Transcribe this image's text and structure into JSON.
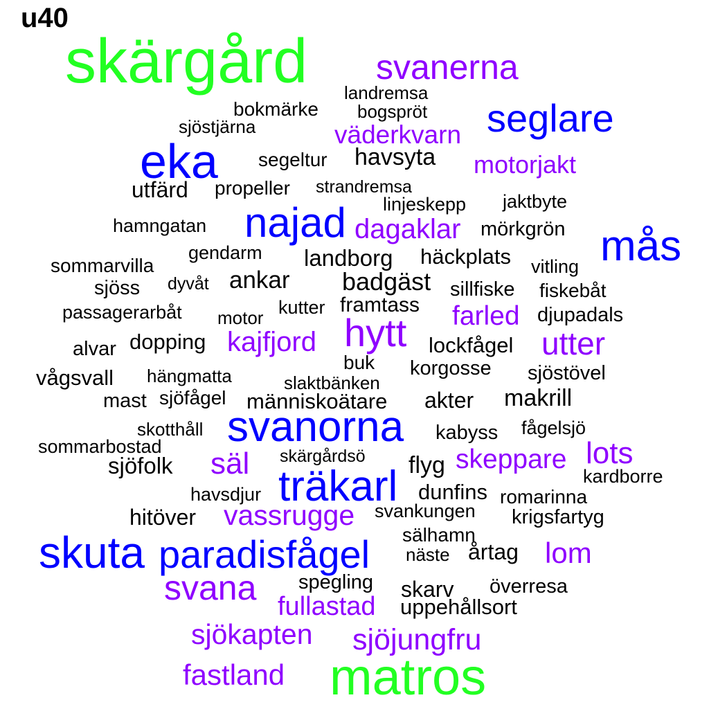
{
  "title": "u40",
  "words": [
    "skärgård",
    "svanerna",
    "landremsa",
    "bokmärke",
    "bogspröt",
    "seglare",
    "sjöstjärna",
    "väderkvarn",
    "eka",
    "segeltur",
    "havsyta",
    "motorjakt",
    "utfärd",
    "propeller",
    "strandremsa",
    "linjeskepp",
    "jaktbyte",
    "hamngatan",
    "najad",
    "dagaklar",
    "mörkgrön",
    "mås",
    "gendarm",
    "landborg",
    "häckplats",
    "sommarvilla",
    "vitling",
    "ankar",
    "sjöss",
    "dyvåt",
    "badgäst",
    "sillfiske",
    "fiskebåt",
    "kutter",
    "framtass",
    "passagerarbåt",
    "motor",
    "farled",
    "djupadals",
    "hytt",
    "kajfjord",
    "dopping",
    "alvar",
    "lockfågel",
    "utter",
    "buk",
    "korgosse",
    "vågsvall",
    "hängmatta",
    "slaktbänken",
    "sjöstövel",
    "mast",
    "sjöfågel",
    "människoätare",
    "akter",
    "makrill",
    "svanorna",
    "skotthåll",
    "kabyss",
    "fågelsjö",
    "sommarbostad",
    "skärgårdsö",
    "lots",
    "sjöfolk",
    "säl",
    "flyg",
    "skeppare",
    "kardborre",
    "träkarl",
    "havsdjur",
    "dunfins",
    "romarinna",
    "hitöver",
    "vassrugge",
    "svankungen",
    "krigsfartyg",
    "sälhamn",
    "skuta",
    "paradisfågel",
    "lom",
    "näste",
    "årtag",
    "spegling",
    "överresa",
    "svana",
    "skarv",
    "fullastad",
    "uppehållsort",
    "sjökapten",
    "sjöjungfru",
    "fastland",
    "matros"
  ],
  "colors": {
    "green": "#22ff22",
    "blue": "#0000ff",
    "purple": "#8f00ff",
    "black": "#000000"
  }
}
